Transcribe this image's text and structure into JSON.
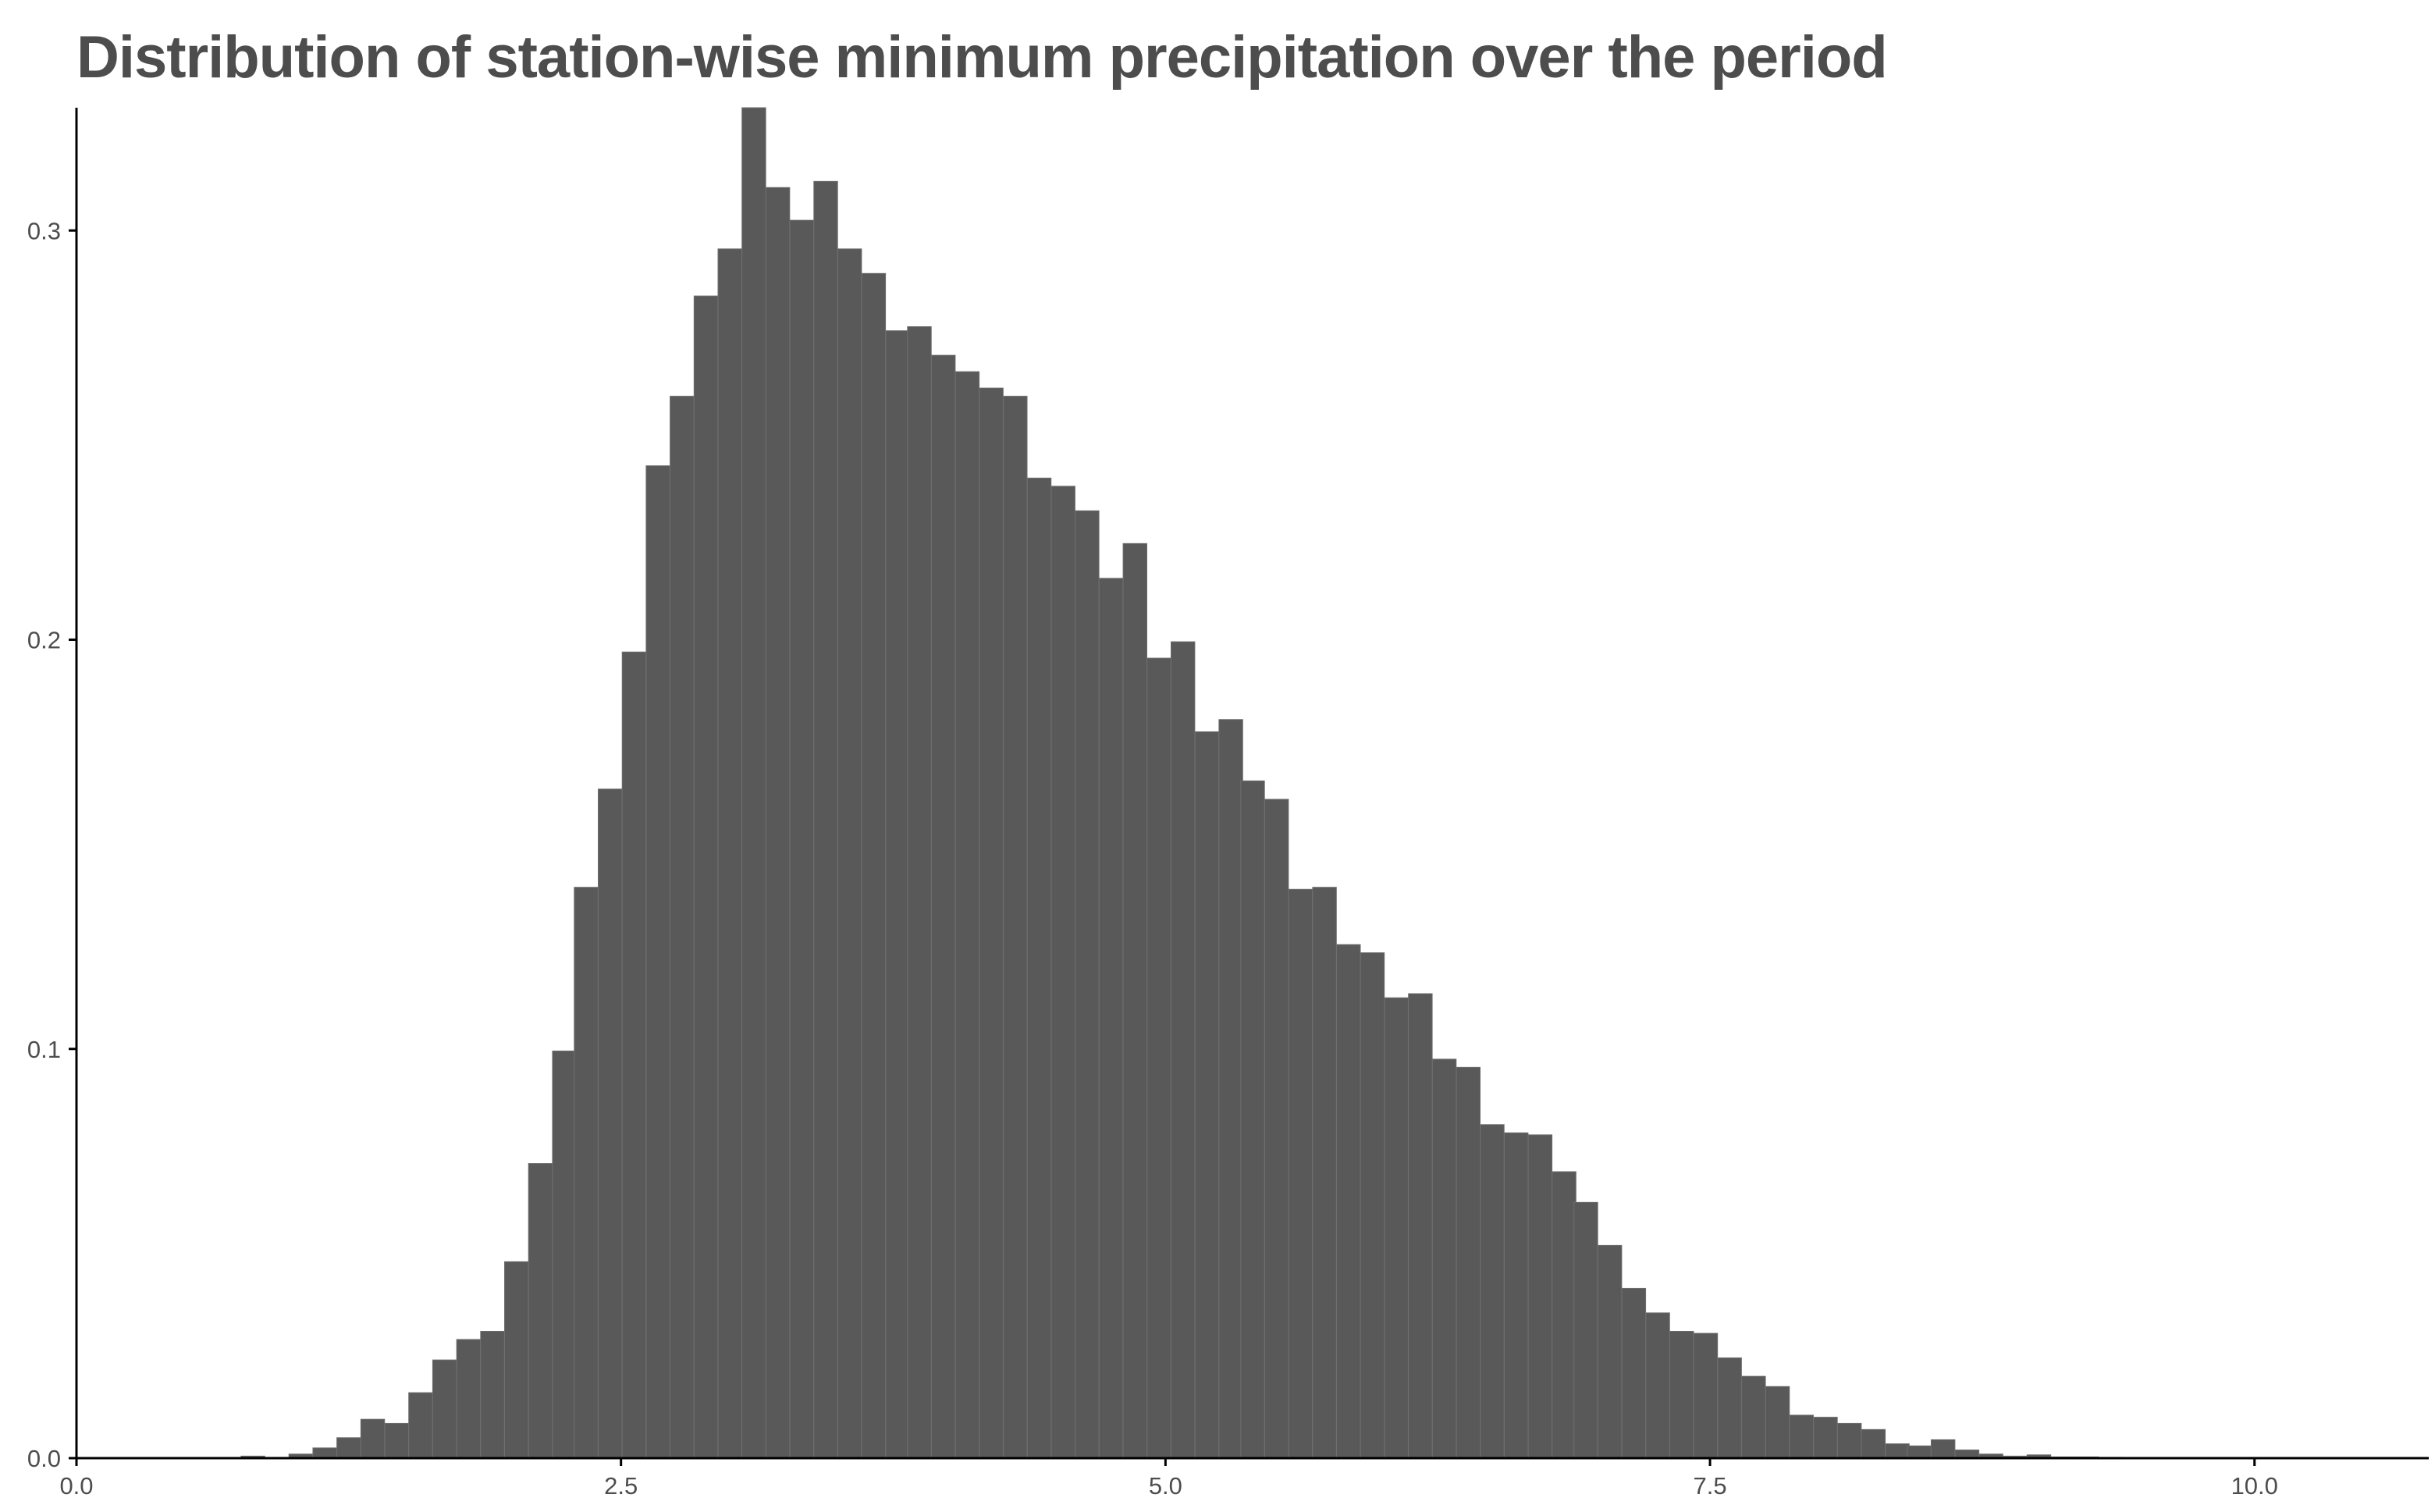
{
  "chart_data": {
    "type": "bar",
    "title": "Distribution of station-wise minimum precipitation over the period",
    "xlabel": "",
    "ylabel": "",
    "xlim": [
      0,
      10.8
    ],
    "ylim": [
      0,
      0.33
    ],
    "grid": false,
    "bar_color": "#595959",
    "bin_width": 0.109,
    "x_ticks": [
      "0.0",
      "2.5",
      "5.0",
      "7.5",
      "10.0"
    ],
    "y_ticks": [
      "0.0",
      "0.1",
      "0.2",
      "0.3"
    ],
    "x": [
      0.16,
      0.27,
      0.38,
      0.49,
      0.6,
      0.71,
      0.81,
      0.92,
      1.03,
      1.14,
      1.25,
      1.36,
      1.47,
      1.58,
      1.69,
      1.8,
      1.91,
      2.02,
      2.13,
      2.24,
      2.34,
      2.45,
      2.56,
      2.67,
      2.78,
      2.89,
      3.0,
      3.11,
      3.22,
      3.33,
      3.44,
      3.55,
      3.66,
      3.77,
      3.87,
      3.98,
      4.09,
      4.2,
      4.31,
      4.42,
      4.53,
      4.64,
      4.75,
      4.86,
      4.97,
      5.08,
      5.19,
      5.3,
      5.4,
      5.51,
      5.62,
      5.73,
      5.84,
      5.95,
      6.06,
      6.17,
      6.28,
      6.39,
      6.5,
      6.61,
      6.72,
      6.83,
      6.93,
      7.04,
      7.15,
      7.26,
      7.37,
      7.48,
      7.59,
      7.7,
      7.81,
      7.92,
      8.03,
      8.14,
      8.25,
      8.36,
      8.46,
      8.57,
      8.68,
      8.79,
      8.9,
      9.01,
      9.12,
      9.23,
      9.34,
      9.45,
      9.56,
      9.67,
      9.78,
      9.89,
      9.99,
      10.1,
      10.21
    ],
    "values": [
      0,
      0,
      0,
      0,
      0,
      0,
      0.0005,
      0.0002,
      0.001,
      0.0025,
      0.005,
      0.0095,
      0.0085,
      0.016,
      0.024,
      0.029,
      0.031,
      0.048,
      0.072,
      0.0995,
      0.1395,
      0.1635,
      0.197,
      0.2425,
      0.2595,
      0.284,
      0.2955,
      0.33,
      0.3105,
      0.3025,
      0.312,
      0.2955,
      0.2895,
      0.2755,
      0.2765,
      0.2695,
      0.2655,
      0.2615,
      0.2595,
      0.2395,
      0.2375,
      0.2315,
      0.215,
      0.2235,
      0.1955,
      0.1995,
      0.1775,
      0.1805,
      0.1655,
      0.161,
      0.139,
      0.1395,
      0.1255,
      0.1235,
      0.1125,
      0.1135,
      0.0975,
      0.0955,
      0.0815,
      0.0795,
      0.079,
      0.07,
      0.0625,
      0.052,
      0.0415,
      0.0355,
      0.031,
      0.0305,
      0.0245,
      0.02,
      0.0175,
      0.0105,
      0.01,
      0.0085,
      0.007,
      0.0035,
      0.003,
      0.0045,
      0.002,
      0.001,
      0.0005,
      0.0008,
      0.0003,
      0.0003,
      0.0002,
      0.0001,
      0.0001,
      0,
      0,
      0,
      0,
      0,
      0
    ]
  }
}
